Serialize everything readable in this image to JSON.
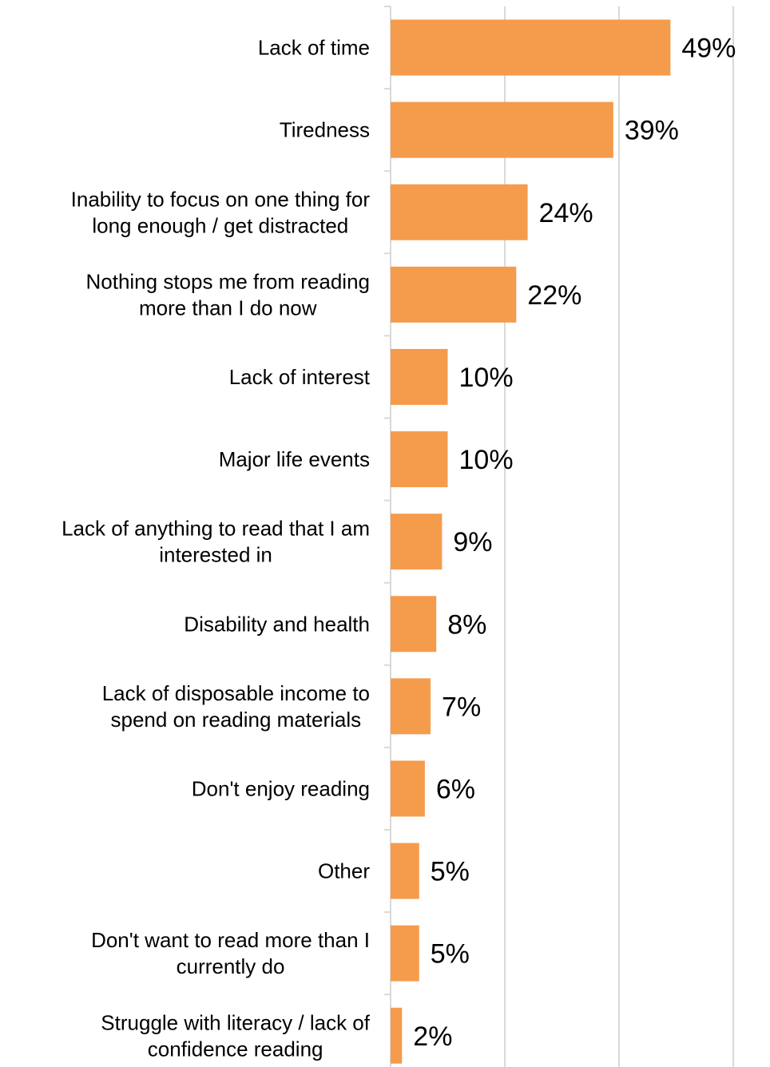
{
  "chart_data": {
    "type": "bar",
    "orientation": "horizontal",
    "categories": [
      [
        "Lack of time"
      ],
      [
        "Tiredness"
      ],
      [
        "Inability to focus on one thing for",
        "long enough / get distracted"
      ],
      [
        "Nothing stops me from reading",
        "more than I do now"
      ],
      [
        "Lack of interest"
      ],
      [
        "Major life events"
      ],
      [
        "Lack of anything to read that I am",
        "interested in"
      ],
      [
        "Disability and health"
      ],
      [
        "Lack of disposable income to",
        "spend on reading materials"
      ],
      [
        "Don't enjoy reading"
      ],
      [
        "Other"
      ],
      [
        "Don't want to read more than I",
        "currently do"
      ],
      [
        "Struggle with literacy / lack of",
        "confidence reading"
      ]
    ],
    "values": [
      49,
      39,
      24,
      22,
      10,
      10,
      9,
      8,
      7,
      6,
      5,
      5,
      2
    ],
    "value_labels": [
      "49%",
      "39%",
      "24%",
      "22%",
      "10%",
      "10%",
      "9%",
      "8%",
      "7%",
      "6%",
      "5%",
      "5%",
      "2%"
    ],
    "xlim": [
      0,
      60
    ],
    "grid": true,
    "bar_color": "#F59B4C",
    "grid_color": "#D9D9D9",
    "axis_color": "#D9D9D9",
    "title": "",
    "xlabel": "",
    "ylabel": ""
  }
}
